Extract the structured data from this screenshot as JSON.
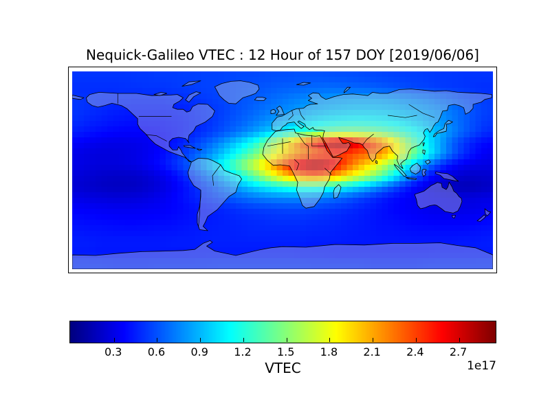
{
  "figure": {
    "title": "Nequick-Galileo VTEC : 12 Hour of 157 DOY [2019/06/06]"
  },
  "colorbar": {
    "label": "VTEC",
    "offset_label": "1e17",
    "colormap": "jet",
    "vmin": 0,
    "vmax": 2.96,
    "tick_values": [
      0.3,
      0.6,
      0.9,
      1.2,
      1.5,
      1.8,
      2.1,
      2.4,
      2.7
    ],
    "tick_labels": [
      "0.3",
      "0.6",
      "0.9",
      "1.2",
      "1.5",
      "1.8",
      "2.1",
      "2.4",
      "2.7"
    ]
  },
  "chart_data": {
    "type": "heatmap",
    "title": "Nequick-Galileo VTEC : 12 Hour of 157 DOY [2019/06/06]",
    "xlabel": "",
    "ylabel": "",
    "colorbar_label": "VTEC",
    "value_scale": "1e17",
    "colormap": "jet",
    "vmin": 0,
    "vmax": 2.96,
    "projection": "equirectangular",
    "lon_range": [
      -180,
      180
    ],
    "lat_range": [
      90,
      -90
    ],
    "grid_step_deg": 10,
    "rows_order": "lat 85N (top) to 85S (bottom), 36 columns lon -175E to 175E",
    "values": [
      [
        0.52,
        0.52,
        0.52,
        0.52,
        0.52,
        0.53,
        0.53,
        0.54,
        0.54,
        0.55,
        0.55,
        0.56,
        0.56,
        0.57,
        0.58,
        0.58,
        0.59,
        0.6,
        0.6,
        0.61,
        0.61,
        0.61,
        0.6,
        0.6,
        0.59,
        0.58,
        0.57,
        0.56,
        0.55,
        0.55,
        0.54,
        0.53,
        0.53,
        0.52,
        0.52,
        0.52
      ],
      [
        0.5,
        0.5,
        0.5,
        0.5,
        0.51,
        0.51,
        0.52,
        0.52,
        0.53,
        0.54,
        0.55,
        0.56,
        0.57,
        0.58,
        0.6,
        0.61,
        0.62,
        0.64,
        0.65,
        0.66,
        0.67,
        0.68,
        0.68,
        0.67,
        0.66,
        0.65,
        0.63,
        0.61,
        0.59,
        0.57,
        0.56,
        0.54,
        0.53,
        0.52,
        0.51,
        0.5
      ],
      [
        0.52,
        0.51,
        0.5,
        0.49,
        0.49,
        0.48,
        0.48,
        0.48,
        0.49,
        0.5,
        0.52,
        0.54,
        0.56,
        0.58,
        0.61,
        0.63,
        0.66,
        0.69,
        0.72,
        0.75,
        0.78,
        0.8,
        0.82,
        0.83,
        0.84,
        0.84,
        0.83,
        0.81,
        0.78,
        0.75,
        0.72,
        0.68,
        0.64,
        0.6,
        0.56,
        0.54
      ],
      [
        0.52,
        0.5,
        0.48,
        0.46,
        0.45,
        0.44,
        0.44,
        0.44,
        0.45,
        0.46,
        0.48,
        0.51,
        0.54,
        0.58,
        0.62,
        0.66,
        0.7,
        0.74,
        0.78,
        0.82,
        0.86,
        0.89,
        0.92,
        0.94,
        0.95,
        0.95,
        0.94,
        0.92,
        0.89,
        0.86,
        0.82,
        0.77,
        0.71,
        0.65,
        0.59,
        0.55
      ],
      [
        0.5,
        0.47,
        0.45,
        0.43,
        0.42,
        0.41,
        0.41,
        0.41,
        0.42,
        0.44,
        0.47,
        0.5,
        0.55,
        0.6,
        0.65,
        0.71,
        0.77,
        0.83,
        0.89,
        0.95,
        1.0,
        1.05,
        1.08,
        1.1,
        1.11,
        1.1,
        1.08,
        1.05,
        1.0,
        0.95,
        0.88,
        0.81,
        0.73,
        0.65,
        0.58,
        0.53
      ],
      [
        0.45,
        0.42,
        0.4,
        0.38,
        0.37,
        0.37,
        0.37,
        0.38,
        0.4,
        0.43,
        0.47,
        0.52,
        0.58,
        0.65,
        0.73,
        0.82,
        0.92,
        1.02,
        1.12,
        1.22,
        1.31,
        1.38,
        1.44,
        1.47,
        1.47,
        1.44,
        1.39,
        1.31,
        1.22,
        1.11,
        1.0,
        0.88,
        0.76,
        0.65,
        0.56,
        0.49
      ],
      [
        0.36,
        0.33,
        0.31,
        0.3,
        0.3,
        0.31,
        0.33,
        0.36,
        0.41,
        0.47,
        0.55,
        0.64,
        0.75,
        0.88,
        1.02,
        1.18,
        1.4,
        1.65,
        1.95,
        2.25,
        2.5,
        2.72,
        2.88,
        2.84,
        2.65,
        2.48,
        2.25,
        1.95,
        1.6,
        1.3,
        1.05,
        0.85,
        0.65,
        0.52,
        0.43,
        0.38
      ],
      [
        0.3,
        0.28,
        0.27,
        0.27,
        0.28,
        0.3,
        0.33,
        0.38,
        0.45,
        0.53,
        0.63,
        0.75,
        0.89,
        1.05,
        1.22,
        1.4,
        1.6,
        1.8,
        2.0,
        2.15,
        2.25,
        2.35,
        2.45,
        2.4,
        2.32,
        2.28,
        2.15,
        1.92,
        1.65,
        1.38,
        1.1,
        0.85,
        0.65,
        0.5,
        0.4,
        0.33
      ],
      [
        0.3,
        0.28,
        0.27,
        0.27,
        0.28,
        0.3,
        0.34,
        0.4,
        0.48,
        0.58,
        0.72,
        0.88,
        1.06,
        1.26,
        1.48,
        1.7,
        1.95,
        2.22,
        2.5,
        2.74,
        2.9,
        2.85,
        2.62,
        2.35,
        2.12,
        1.92,
        1.7,
        1.45,
        1.18,
        0.92,
        0.7,
        0.52,
        0.4,
        0.33,
        0.3,
        0.29
      ],
      [
        0.26,
        0.24,
        0.22,
        0.21,
        0.21,
        0.22,
        0.25,
        0.3,
        0.37,
        0.46,
        0.57,
        0.7,
        0.85,
        1.02,
        1.2,
        1.4,
        1.62,
        1.85,
        2.05,
        2.22,
        2.3,
        2.25,
        2.1,
        1.92,
        1.75,
        1.58,
        1.38,
        1.12,
        0.86,
        0.62,
        0.44,
        0.32,
        0.26,
        0.23,
        0.22,
        0.23
      ],
      [
        0.24,
        0.22,
        0.2,
        0.19,
        0.19,
        0.2,
        0.23,
        0.27,
        0.33,
        0.4,
        0.48,
        0.57,
        0.67,
        0.78,
        0.88,
        0.98,
        1.07,
        1.14,
        1.2,
        1.24,
        1.25,
        1.22,
        1.16,
        1.08,
        0.98,
        0.86,
        0.73,
        0.6,
        0.47,
        0.36,
        0.28,
        0.22,
        0.18,
        0.16,
        0.17,
        0.2
      ],
      [
        0.3,
        0.28,
        0.27,
        0.26,
        0.26,
        0.27,
        0.29,
        0.32,
        0.36,
        0.41,
        0.46,
        0.52,
        0.57,
        0.62,
        0.67,
        0.71,
        0.74,
        0.76,
        0.77,
        0.77,
        0.75,
        0.72,
        0.68,
        0.63,
        0.57,
        0.51,
        0.45,
        0.4,
        0.36,
        0.33,
        0.31,
        0.3,
        0.29,
        0.28,
        0.28,
        0.29
      ],
      [
        0.36,
        0.35,
        0.34,
        0.33,
        0.33,
        0.33,
        0.34,
        0.35,
        0.37,
        0.39,
        0.42,
        0.44,
        0.47,
        0.49,
        0.52,
        0.54,
        0.55,
        0.56,
        0.57,
        0.57,
        0.56,
        0.54,
        0.52,
        0.5,
        0.47,
        0.44,
        0.41,
        0.38,
        0.36,
        0.34,
        0.32,
        0.31,
        0.3,
        0.3,
        0.31,
        0.33
      ],
      [
        0.4,
        0.39,
        0.38,
        0.38,
        0.37,
        0.37,
        0.38,
        0.38,
        0.39,
        0.41,
        0.42,
        0.44,
        0.45,
        0.47,
        0.48,
        0.49,
        0.5,
        0.51,
        0.51,
        0.51,
        0.5,
        0.49,
        0.48,
        0.46,
        0.45,
        0.43,
        0.41,
        0.4,
        0.38,
        0.37,
        0.36,
        0.35,
        0.35,
        0.35,
        0.36,
        0.38
      ],
      [
        0.43,
        0.42,
        0.42,
        0.41,
        0.41,
        0.41,
        0.41,
        0.42,
        0.42,
        0.43,
        0.44,
        0.45,
        0.46,
        0.46,
        0.47,
        0.48,
        0.48,
        0.48,
        0.48,
        0.48,
        0.47,
        0.47,
        0.46,
        0.45,
        0.44,
        0.43,
        0.42,
        0.42,
        0.41,
        0.4,
        0.4,
        0.4,
        0.4,
        0.4,
        0.41,
        0.42
      ],
      [
        0.45,
        0.45,
        0.44,
        0.44,
        0.44,
        0.44,
        0.44,
        0.44,
        0.45,
        0.45,
        0.45,
        0.46,
        0.46,
        0.46,
        0.46,
        0.46,
        0.46,
        0.46,
        0.46,
        0.46,
        0.45,
        0.45,
        0.45,
        0.44,
        0.44,
        0.44,
        0.43,
        0.43,
        0.43,
        0.43,
        0.43,
        0.43,
        0.43,
        0.44,
        0.44,
        0.45
      ],
      [
        0.44,
        0.44,
        0.43,
        0.43,
        0.43,
        0.43,
        0.43,
        0.43,
        0.43,
        0.43,
        0.44,
        0.44,
        0.44,
        0.44,
        0.44,
        0.44,
        0.44,
        0.44,
        0.44,
        0.43,
        0.43,
        0.43,
        0.42,
        0.42,
        0.42,
        0.42,
        0.42,
        0.42,
        0.42,
        0.42,
        0.42,
        0.43,
        0.43,
        0.43,
        0.44,
        0.44
      ],
      [
        0.5,
        0.5,
        0.5,
        0.49,
        0.49,
        0.49,
        0.49,
        0.5,
        0.5,
        0.5,
        0.5,
        0.5,
        0.51,
        0.51,
        0.51,
        0.51,
        0.51,
        0.51,
        0.51,
        0.51,
        0.5,
        0.5,
        0.5,
        0.5,
        0.5,
        0.49,
        0.49,
        0.49,
        0.49,
        0.49,
        0.5,
        0.5,
        0.5,
        0.5,
        0.5,
        0.5
      ]
    ]
  }
}
